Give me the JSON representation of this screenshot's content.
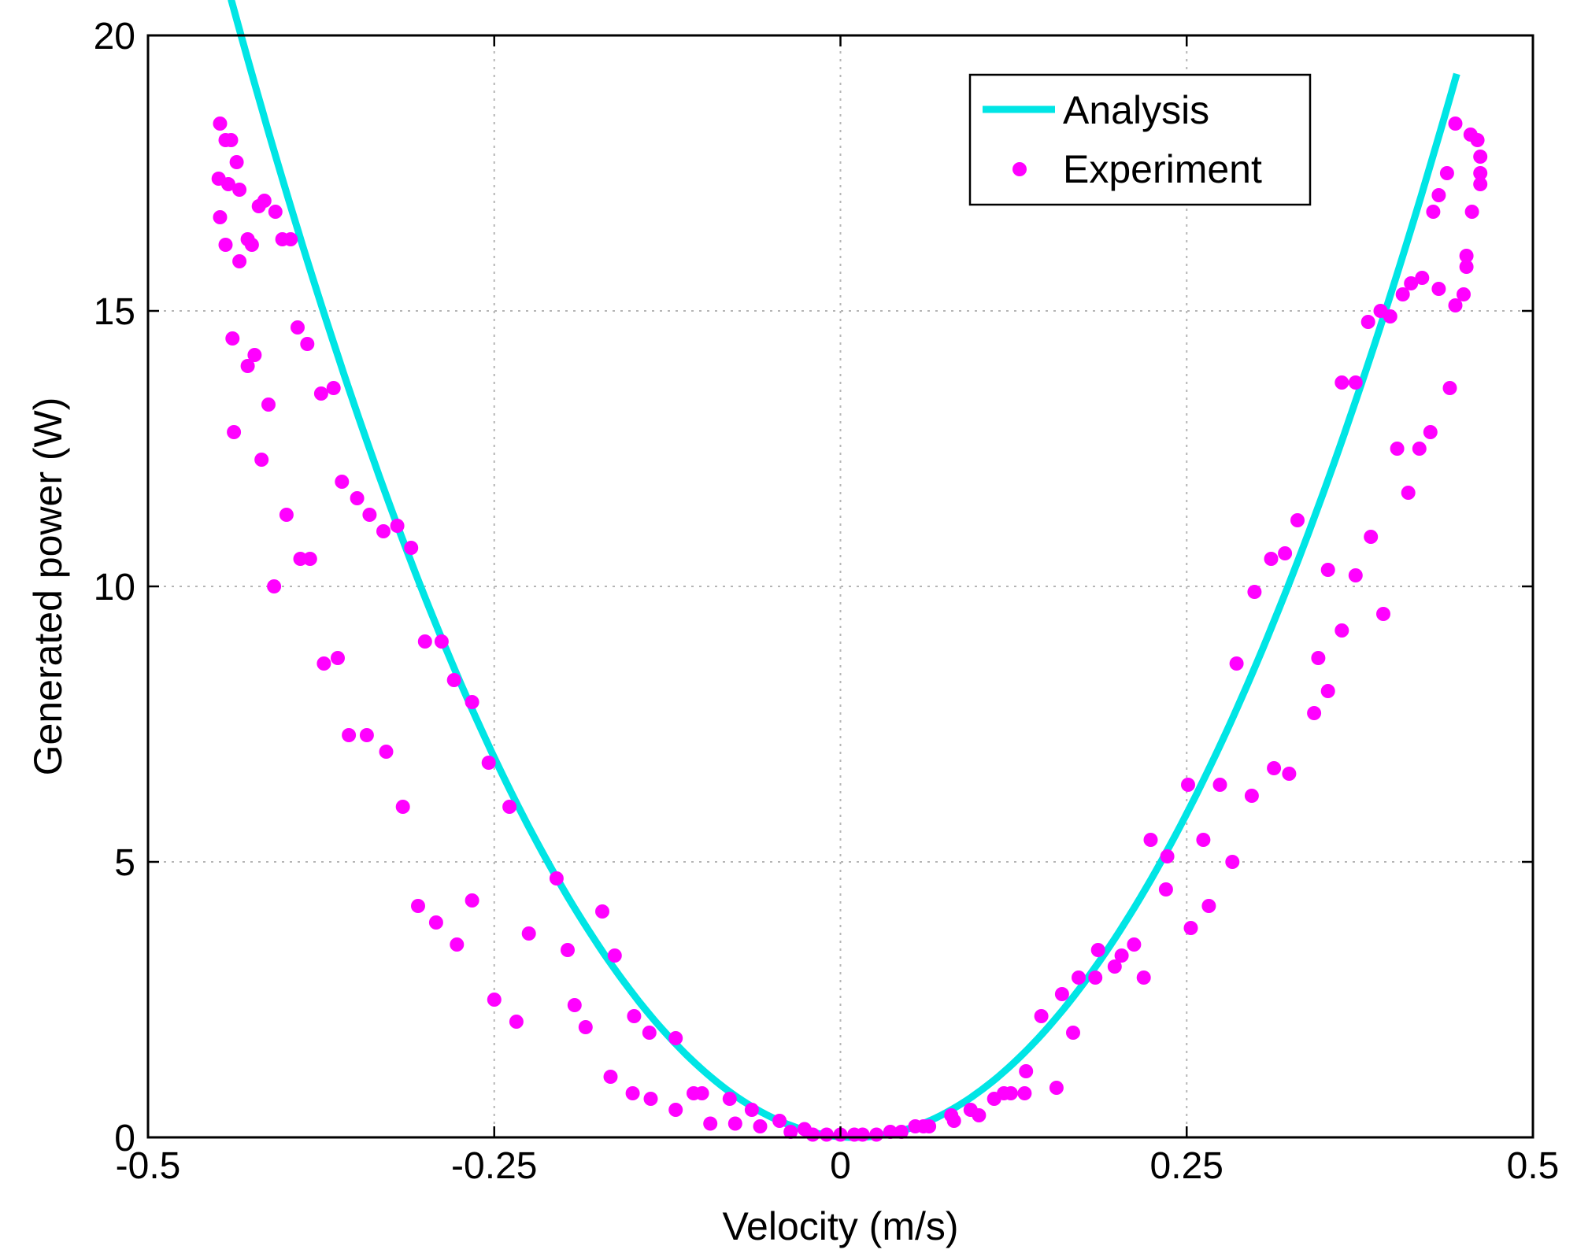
{
  "chart_data": {
    "type": "scatter",
    "title": "",
    "xlabel": "Velocity (m/s)",
    "ylabel": "Generated power (W)",
    "xlim": [
      -0.5,
      0.5
    ],
    "ylim": [
      0,
      20
    ],
    "xticks": [
      -0.5,
      -0.25,
      0,
      0.25,
      0.5
    ],
    "xtick_labels": [
      "-0.5",
      "-0.25",
      "0",
      "0.25",
      "0.5"
    ],
    "yticks": [
      0,
      5,
      10,
      15,
      20
    ],
    "ytick_labels": [
      "0",
      "5",
      "10",
      "15",
      "20"
    ],
    "grid": true,
    "legend_position": "top-right",
    "colors": {
      "analysis": "#00e5e5",
      "experiment": "#ff00ff"
    },
    "series": [
      {
        "name": "Analysis",
        "type": "line",
        "curve": "quadratic",
        "center_x": 0.01,
        "coefficient": 102,
        "x_range": [
          -0.44,
          0.445
        ]
      },
      {
        "name": "Experiment",
        "type": "scatter",
        "points": [
          [
            -0.448,
            18.4
          ],
          [
            -0.449,
            17.4
          ],
          [
            -0.448,
            16.7
          ],
          [
            -0.444,
            18.1
          ],
          [
            -0.44,
            18.1
          ],
          [
            -0.442,
            17.3
          ],
          [
            -0.444,
            16.2
          ],
          [
            -0.436,
            17.7
          ],
          [
            -0.434,
            17.2
          ],
          [
            -0.434,
            15.9
          ],
          [
            -0.439,
            14.5
          ],
          [
            -0.438,
            12.8
          ],
          [
            -0.428,
            16.3
          ],
          [
            -0.425,
            16.2
          ],
          [
            -0.42,
            16.9
          ],
          [
            -0.416,
            17.0
          ],
          [
            -0.408,
            16.8
          ],
          [
            -0.403,
            16.3
          ],
          [
            -0.397,
            16.3
          ],
          [
            -0.428,
            14.0
          ],
          [
            -0.423,
            14.2
          ],
          [
            -0.413,
            13.3
          ],
          [
            -0.418,
            12.3
          ],
          [
            -0.4,
            11.3
          ],
          [
            -0.409,
            10.0
          ],
          [
            -0.39,
            10.5
          ],
          [
            -0.383,
            10.5
          ],
          [
            -0.385,
            14.4
          ],
          [
            -0.392,
            14.7
          ],
          [
            -0.375,
            13.5
          ],
          [
            -0.366,
            13.6
          ],
          [
            -0.36,
            11.9
          ],
          [
            -0.349,
            11.6
          ],
          [
            -0.34,
            11.3
          ],
          [
            -0.33,
            11.0
          ],
          [
            -0.32,
            11.1
          ],
          [
            -0.31,
            10.7
          ],
          [
            -0.373,
            8.6
          ],
          [
            -0.363,
            8.7
          ],
          [
            -0.355,
            7.3
          ],
          [
            -0.342,
            7.3
          ],
          [
            -0.328,
            7.0
          ],
          [
            -0.316,
            6.0
          ],
          [
            -0.3,
            9.0
          ],
          [
            -0.288,
            9.0
          ],
          [
            -0.279,
            8.3
          ],
          [
            -0.266,
            7.9
          ],
          [
            -0.254,
            6.8
          ],
          [
            -0.239,
            6.0
          ],
          [
            -0.305,
            4.2
          ],
          [
            -0.292,
            3.9
          ],
          [
            -0.277,
            3.5
          ],
          [
            -0.266,
            4.3
          ],
          [
            -0.25,
            2.5
          ],
          [
            -0.234,
            2.1
          ],
          [
            -0.225,
            3.7
          ],
          [
            -0.205,
            4.7
          ],
          [
            -0.197,
            3.4
          ],
          [
            -0.192,
            2.4
          ],
          [
            -0.184,
            2.0
          ],
          [
            -0.172,
            4.1
          ],
          [
            -0.163,
            3.3
          ],
          [
            -0.149,
            2.2
          ],
          [
            -0.138,
            1.9
          ],
          [
            -0.119,
            1.8
          ],
          [
            -0.166,
            1.1
          ],
          [
            -0.15,
            0.8
          ],
          [
            -0.137,
            0.7
          ],
          [
            -0.119,
            0.5
          ],
          [
            -0.106,
            0.8
          ],
          [
            -0.1,
            0.8
          ],
          [
            -0.094,
            0.25
          ],
          [
            -0.08,
            0.7
          ],
          [
            -0.076,
            0.25
          ],
          [
            -0.064,
            0.5
          ],
          [
            -0.058,
            0.2
          ],
          [
            -0.044,
            0.3
          ],
          [
            -0.036,
            0.1
          ],
          [
            -0.026,
            0.15
          ],
          [
            -0.02,
            0.05
          ],
          [
            -0.01,
            0.05
          ],
          [
            0.0,
            0.05
          ],
          [
            0.01,
            0.05
          ],
          [
            0.016,
            0.05
          ],
          [
            0.026,
            0.05
          ],
          [
            0.036,
            0.1
          ],
          [
            0.044,
            0.1
          ],
          [
            0.054,
            0.2
          ],
          [
            0.06,
            0.2
          ],
          [
            0.064,
            0.2
          ],
          [
            0.08,
            0.4
          ],
          [
            0.082,
            0.3
          ],
          [
            0.094,
            0.5
          ],
          [
            0.1,
            0.4
          ],
          [
            0.111,
            0.7
          ],
          [
            0.118,
            0.8
          ],
          [
            0.123,
            0.8
          ],
          [
            0.134,
            1.2
          ],
          [
            0.133,
            0.8
          ],
          [
            0.156,
            0.9
          ],
          [
            0.145,
            2.2
          ],
          [
            0.16,
            2.6
          ],
          [
            0.168,
            1.9
          ],
          [
            0.172,
            2.9
          ],
          [
            0.184,
            2.9
          ],
          [
            0.186,
            3.4
          ],
          [
            0.198,
            3.1
          ],
          [
            0.203,
            3.3
          ],
          [
            0.212,
            3.5
          ],
          [
            0.219,
            2.9
          ],
          [
            0.224,
            5.4
          ],
          [
            0.236,
            5.1
          ],
          [
            0.235,
            4.5
          ],
          [
            0.251,
            6.4
          ],
          [
            0.253,
            3.8
          ],
          [
            0.262,
            5.4
          ],
          [
            0.266,
            4.2
          ],
          [
            0.274,
            6.4
          ],
          [
            0.283,
            5.0
          ],
          [
            0.286,
            8.6
          ],
          [
            0.297,
            6.2
          ],
          [
            0.299,
            9.9
          ],
          [
            0.311,
            10.5
          ],
          [
            0.313,
            6.7
          ],
          [
            0.321,
            10.6
          ],
          [
            0.324,
            6.6
          ],
          [
            0.33,
            11.2
          ],
          [
            0.342,
            7.7
          ],
          [
            0.345,
            8.7
          ],
          [
            0.352,
            8.1
          ],
          [
            0.352,
            10.3
          ],
          [
            0.362,
            9.2
          ],
          [
            0.362,
            13.7
          ],
          [
            0.372,
            13.7
          ],
          [
            0.372,
            10.2
          ],
          [
            0.381,
            14.8
          ],
          [
            0.383,
            10.9
          ],
          [
            0.39,
            15.0
          ],
          [
            0.392,
            9.5
          ],
          [
            0.397,
            14.9
          ],
          [
            0.402,
            12.5
          ],
          [
            0.406,
            15.3
          ],
          [
            0.41,
            11.7
          ],
          [
            0.412,
            15.5
          ],
          [
            0.418,
            12.5
          ],
          [
            0.42,
            15.6
          ],
          [
            0.426,
            12.8
          ],
          [
            0.428,
            16.8
          ],
          [
            0.432,
            17.1
          ],
          [
            0.432,
            15.4
          ],
          [
            0.438,
            17.5
          ],
          [
            0.44,
            13.6
          ],
          [
            0.444,
            18.4
          ],
          [
            0.444,
            15.1
          ],
          [
            0.45,
            15.3
          ],
          [
            0.452,
            16.0
          ],
          [
            0.452,
            15.8
          ],
          [
            0.455,
            18.2
          ],
          [
            0.456,
            16.8
          ],
          [
            0.46,
            18.1
          ],
          [
            0.462,
            17.8
          ],
          [
            0.462,
            17.5
          ],
          [
            0.462,
            17.3
          ]
        ]
      }
    ]
  }
}
